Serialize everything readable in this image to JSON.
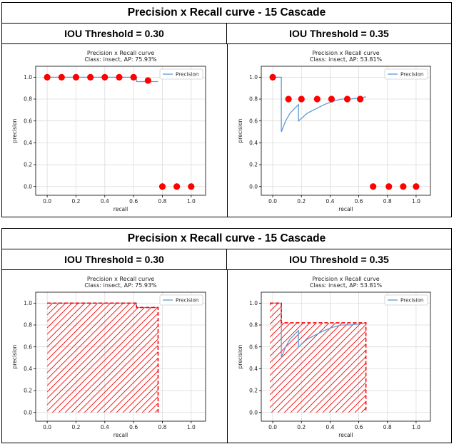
{
  "tables": [
    {
      "title": "Precision x Recall curve - 15 Cascade",
      "columns": [
        "IOU Threshold = 0.30",
        "IOU Threshold = 0.35"
      ]
    },
    {
      "title": "Precision x Recall curve - 15 Cascade",
      "columns": [
        "IOU Threshold = 0.30",
        "IOU Threshold = 0.35"
      ]
    }
  ],
  "chart_data": [
    {
      "type": "line",
      "mode": "points",
      "title": "Precision x Recall curve",
      "subtitle": "Class: insect, AP: 75.93%",
      "xlabel": "recall",
      "ylabel": "precision",
      "xlim": [
        -0.08,
        1.1
      ],
      "ylim": [
        -0.08,
        1.1
      ],
      "xticks": [
        "0.0",
        "0.2",
        "0.4",
        "0.6",
        "0.8",
        "1.0"
      ],
      "yticks": [
        "0.0",
        "0.2",
        "0.4",
        "0.6",
        "0.8",
        "1.0"
      ],
      "grid": true,
      "legend": "top-right",
      "line_color": "#5b9bd5",
      "marker_color": "#ff0000",
      "series": [
        {
          "name": "Precision",
          "x": [
            0.0,
            0.06,
            0.13,
            0.19,
            0.25,
            0.31,
            0.38,
            0.44,
            0.5,
            0.56,
            0.62,
            0.62,
            0.69,
            0.75,
            0.77
          ],
          "y": [
            1.0,
            1.0,
            1.0,
            1.0,
            1.0,
            1.0,
            1.0,
            1.0,
            1.0,
            1.0,
            1.0,
            0.96,
            0.96,
            0.96,
            0.96
          ]
        }
      ],
      "markers": {
        "x": [
          0.0,
          0.1,
          0.2,
          0.3,
          0.4,
          0.5,
          0.6,
          0.7,
          0.8,
          0.9,
          1.0
        ],
        "y": [
          1.0,
          1.0,
          1.0,
          1.0,
          1.0,
          1.0,
          1.0,
          0.97,
          0.0,
          0.0,
          0.0
        ]
      }
    },
    {
      "type": "line",
      "mode": "points",
      "title": "Precision x Recall curve",
      "subtitle": "Class: insect, AP: 53.81%",
      "xlabel": "recall",
      "ylabel": "precision",
      "xlim": [
        -0.08,
        1.1
      ],
      "ylim": [
        -0.08,
        1.1
      ],
      "xticks": [
        "0.0",
        "0.2",
        "0.4",
        "0.6",
        "0.8",
        "1.0"
      ],
      "yticks": [
        "0.0",
        "0.2",
        "0.4",
        "0.6",
        "0.8",
        "1.0"
      ],
      "grid": true,
      "legend": "top-right",
      "line_color": "#5b9bd5",
      "marker_color": "#ff0000",
      "series": [
        {
          "name": "Precision",
          "x": [
            0.0,
            0.06,
            0.06,
            0.09,
            0.12,
            0.18,
            0.18,
            0.24,
            0.3,
            0.36,
            0.42,
            0.48,
            0.54,
            0.6,
            0.65
          ],
          "y": [
            1.0,
            1.0,
            0.5,
            0.6,
            0.67,
            0.75,
            0.6,
            0.67,
            0.71,
            0.75,
            0.78,
            0.8,
            0.8,
            0.81,
            0.82
          ]
        }
      ],
      "markers": {
        "x": [
          0.0,
          0.11,
          0.2,
          0.31,
          0.41,
          0.52,
          0.61,
          0.7,
          0.81,
          0.91,
          1.0
        ],
        "y": [
          1.0,
          0.8,
          0.8,
          0.8,
          0.8,
          0.8,
          0.8,
          0.0,
          0.0,
          0.0,
          0.0
        ]
      }
    },
    {
      "type": "line",
      "mode": "area",
      "title": "Precision x Recall curve",
      "subtitle": "Class: insect, AP: 75.93%",
      "xlabel": "recall",
      "ylabel": "precision",
      "xlim": [
        -0.08,
        1.1
      ],
      "ylim": [
        -0.08,
        1.1
      ],
      "xticks": [
        "0.0",
        "0.2",
        "0.4",
        "0.6",
        "0.8",
        "1.0"
      ],
      "yticks": [
        "0.0",
        "0.2",
        "0.4",
        "0.6",
        "0.8",
        "1.0"
      ],
      "grid": true,
      "legend": "top-right",
      "line_color": "#5b9bd5",
      "marker_color": "#ff0000",
      "series": [
        {
          "name": "Precision",
          "x": [
            0.0,
            0.62,
            0.62,
            0.77
          ],
          "y": [
            1.0,
            1.0,
            0.96,
            0.96
          ]
        }
      ],
      "interpolated": {
        "x": [
          0.0,
          0.62,
          0.62,
          0.77,
          0.77
        ],
        "y": [
          1.0,
          1.0,
          0.96,
          0.96,
          0.0
        ]
      }
    },
    {
      "type": "line",
      "mode": "area",
      "title": "Precision x Recall curve",
      "subtitle": "Class: insect, AP: 53.81%",
      "xlabel": "recall",
      "ylabel": "precision",
      "xlim": [
        -0.08,
        1.1
      ],
      "ylim": [
        -0.08,
        1.1
      ],
      "xticks": [
        "0.0",
        "0.2",
        "0.4",
        "0.6",
        "0.8",
        "1.0"
      ],
      "yticks": [
        "0.0",
        "0.2",
        "0.4",
        "0.6",
        "0.8",
        "1.0"
      ],
      "grid": true,
      "legend": "top-right",
      "line_color": "#5b9bd5",
      "marker_color": "#ff0000",
      "series": [
        {
          "name": "Precision",
          "x": [
            0.0,
            0.06,
            0.06,
            0.09,
            0.12,
            0.18,
            0.18,
            0.24,
            0.3,
            0.36,
            0.42,
            0.48,
            0.54,
            0.6,
            0.65
          ],
          "y": [
            1.0,
            1.0,
            0.5,
            0.6,
            0.67,
            0.75,
            0.6,
            0.67,
            0.71,
            0.75,
            0.78,
            0.8,
            0.8,
            0.81,
            0.82
          ]
        }
      ],
      "interpolated": {
        "x": [
          -0.02,
          0.06,
          0.06,
          0.65,
          0.65
        ],
        "y": [
          1.0,
          1.0,
          0.82,
          0.82,
          0.0
        ]
      }
    }
  ]
}
